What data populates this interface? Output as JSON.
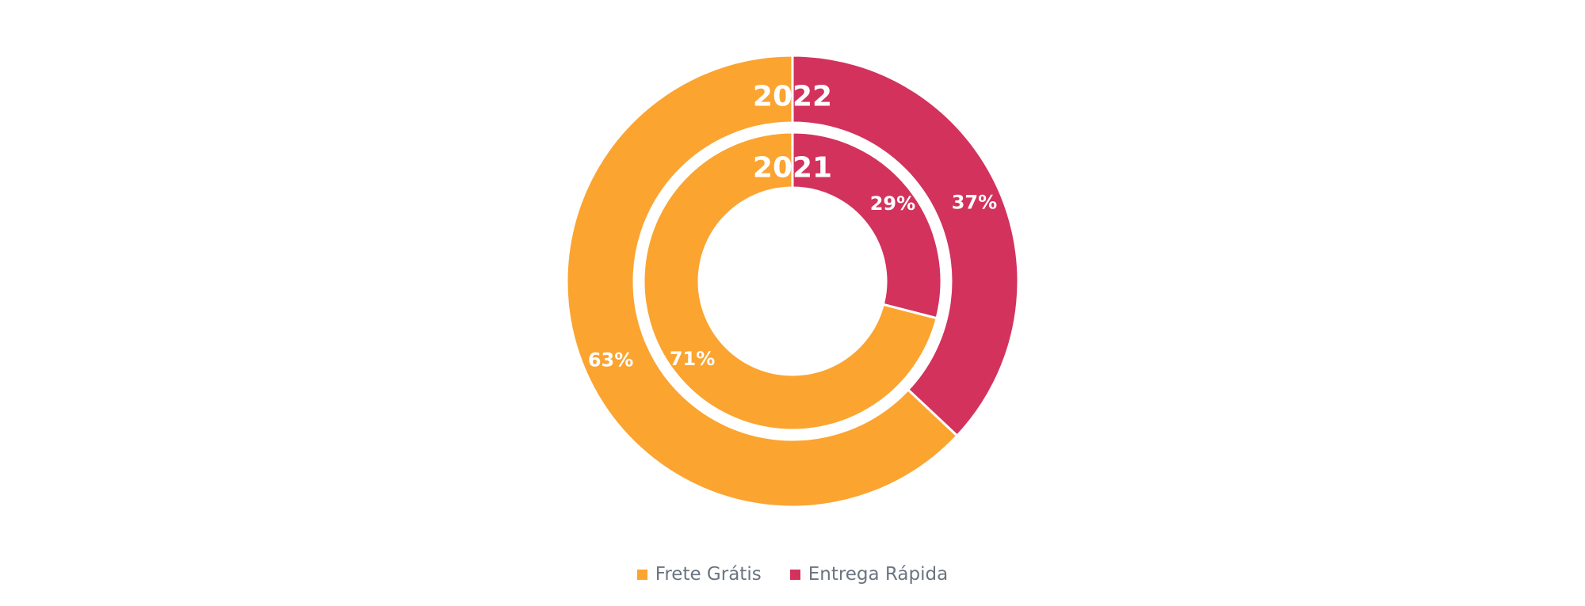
{
  "chart_data": {
    "type": "pie",
    "variant": "nested-donut",
    "series": [
      {
        "ring_label": "2022",
        "values": [
          63,
          37
        ],
        "value_labels": [
          "63%",
          "37%"
        ]
      },
      {
        "ring_label": "2021",
        "values": [
          71,
          29
        ],
        "value_labels": [
          "71%",
          "29%"
        ]
      }
    ],
    "categories": [
      "Frete Grátis",
      "Entrega Rápida"
    ],
    "colors": [
      "#FBA430",
      "#D3325D"
    ],
    "legend": {
      "position": "bottom",
      "items": [
        {
          "label": "Frete Grátis",
          "color": "#FBA430"
        },
        {
          "label": "Entrega Rápida",
          "color": "#D3325D"
        }
      ]
    }
  }
}
